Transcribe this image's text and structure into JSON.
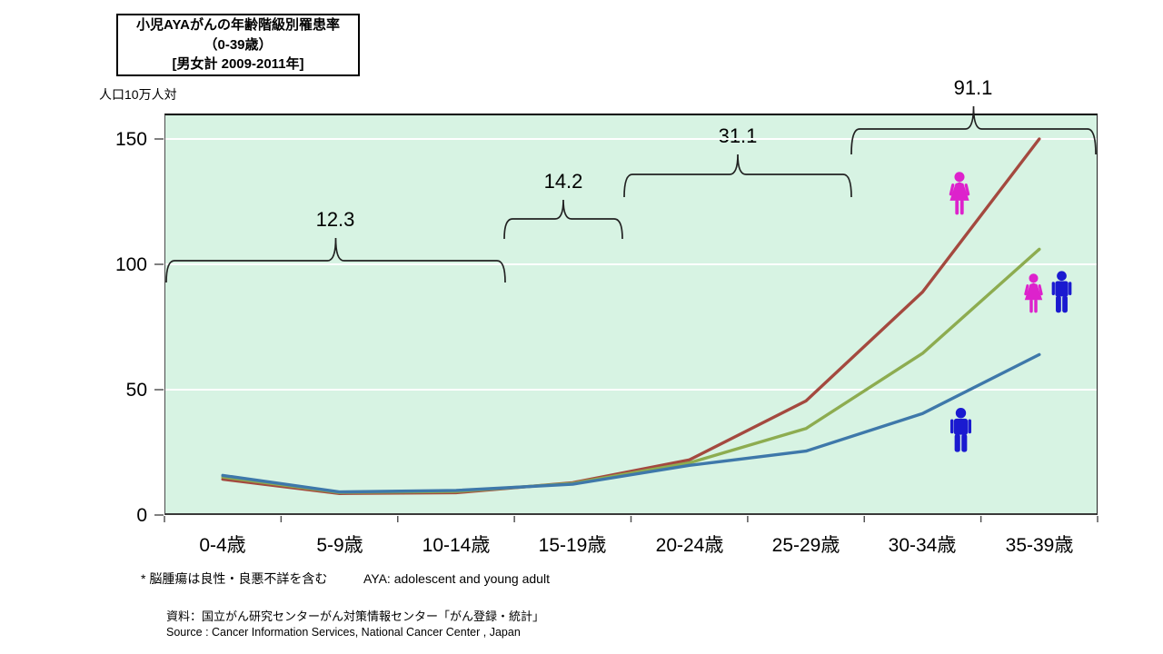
{
  "header": {
    "title_line1": "小児AYAがんの年齢階級別罹患率",
    "title_line2": "（0-39歳）",
    "title_line3": "[男女計 2009-2011年]",
    "unit_label": "人口10万人対"
  },
  "chart_data": {
    "type": "line",
    "title": "小児AYAがんの年齢階級別罹患率（0-39歳）[男女計 2009-2011年]",
    "ylabel": "人口10万人対",
    "categories": [
      "0-4歳",
      "5-9歳",
      "10-14歳",
      "15-19歳",
      "20-24歳",
      "25-29歳",
      "30-34歳",
      "35-39歳"
    ],
    "series": [
      {
        "name": "female",
        "icon": "female-icon",
        "color": "#a4493f",
        "values": [
          14.3,
          8.6,
          8.9,
          12.9,
          22.0,
          45.5,
          89.0,
          150.0
        ]
      },
      {
        "name": "both-sexes",
        "icon": "female-male-pair-icon",
        "color": "#8dac50",
        "values": [
          15.2,
          9.0,
          9.4,
          12.6,
          20.8,
          34.5,
          64.5,
          106.0
        ]
      },
      {
        "name": "male",
        "icon": "male-icon",
        "color": "#3e78aa",
        "values": [
          15.8,
          9.2,
          9.8,
          12.3,
          19.8,
          25.5,
          40.5,
          64.0
        ]
      }
    ],
    "ylim": [
      0,
      160
    ],
    "yticks": [
      0,
      50,
      100,
      150
    ],
    "grid": "white horizontal gridlines at yticks",
    "legend_position": "none",
    "plot_background": "#d7f3e3",
    "annotations": [
      {
        "value": "12.3",
        "age_span": "0-14歳"
      },
      {
        "value": "14.2",
        "age_span": "15-19歳"
      },
      {
        "value": "31.1",
        "age_span": "20-29歳"
      },
      {
        "value": "91.1",
        "age_span": "30-39歳"
      }
    ]
  },
  "icons": {
    "female_color": "#dd22cc",
    "male_color": "#1a1ad0"
  },
  "footnotes": {
    "note1": "* 脳腫瘍は良性・良悪不詳を含む",
    "note2": "AYA: adolescent and young adult"
  },
  "source": {
    "ja": "資料：国立がん研究センターがん対策情報センター「がん登録・統計」",
    "en": "Source : Cancer Information Services, National Cancer Center , Japan"
  }
}
